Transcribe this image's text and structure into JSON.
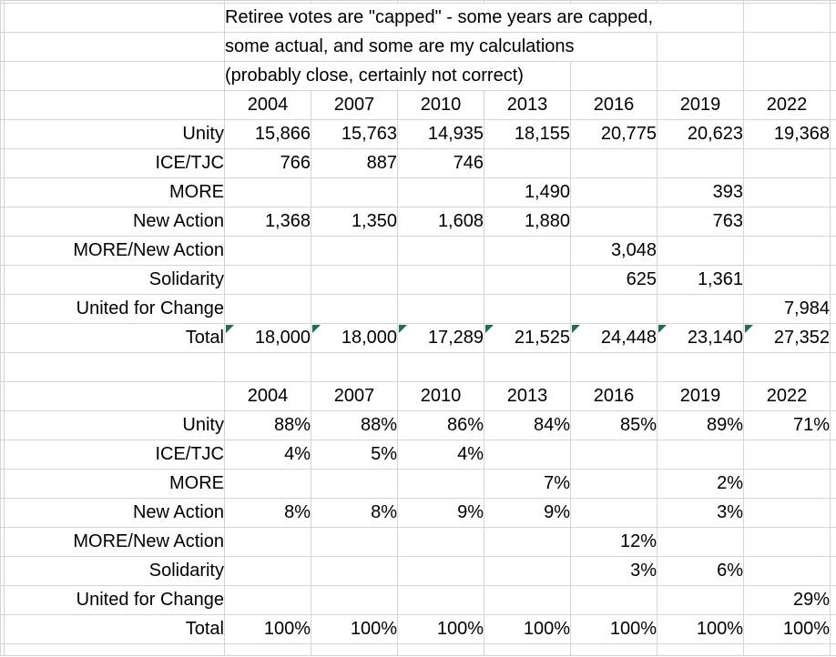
{
  "note": {
    "lines": [
      "Retiree votes are \"capped\" - some years are capped,",
      "some actual, and some are my calculations",
      "(probably close, certainly not correct)"
    ]
  },
  "years": [
    "2004",
    "2007",
    "2010",
    "2013",
    "2016",
    "2019",
    "2022"
  ],
  "vote_table": {
    "row_labels": [
      "Unity",
      "ICE/TJC",
      "MORE",
      "New Action",
      "MORE/New Action",
      "Solidarity",
      "United for Change"
    ],
    "rows": [
      [
        "15,866",
        "15,763",
        "14,935",
        "18,155",
        "20,775",
        "20,623",
        "19,368"
      ],
      [
        "766",
        "887",
        "746",
        "",
        "",
        "",
        ""
      ],
      [
        "",
        "",
        "",
        "1,490",
        "",
        "393",
        ""
      ],
      [
        "1,368",
        "1,350",
        "1,608",
        "1,880",
        "",
        "763",
        ""
      ],
      [
        "",
        "",
        "",
        "",
        "3,048",
        "",
        ""
      ],
      [
        "",
        "",
        "",
        "",
        "625",
        "1,361",
        ""
      ],
      [
        "",
        "",
        "",
        "",
        "",
        "",
        "7,984"
      ]
    ],
    "total_label": "Total",
    "totals": [
      "18,000",
      "18,000",
      "17,289",
      "21,525",
      "24,448",
      "23,140",
      "27,352"
    ],
    "total_has_error_flags": true
  },
  "percent_table": {
    "row_labels": [
      "Unity",
      "ICE/TJC",
      "MORE",
      "New Action",
      "MORE/New Action",
      "Solidarity",
      "United for Change"
    ],
    "rows": [
      [
        "88%",
        "88%",
        "86%",
        "84%",
        "85%",
        "89%",
        "71%"
      ],
      [
        "4%",
        "5%",
        "4%",
        "",
        "",
        "",
        ""
      ],
      [
        "",
        "",
        "",
        "7%",
        "",
        "2%",
        ""
      ],
      [
        "8%",
        "8%",
        "9%",
        "9%",
        "",
        "3%",
        ""
      ],
      [
        "",
        "",
        "",
        "",
        "12%",
        "",
        ""
      ],
      [
        "",
        "",
        "",
        "",
        "3%",
        "6%",
        ""
      ],
      [
        "",
        "",
        "",
        "",
        "",
        "",
        "29%"
      ]
    ],
    "total_label": "Total",
    "totals": [
      "100%",
      "100%",
      "100%",
      "100%",
      "100%",
      "100%",
      "100%"
    ],
    "total_has_error_flags": false
  },
  "colors": {
    "gridline": "#d4d4d4",
    "table_border": "#000000",
    "error_flag_green": "#1e7145",
    "background": "#ffffff",
    "text": "#000000"
  }
}
